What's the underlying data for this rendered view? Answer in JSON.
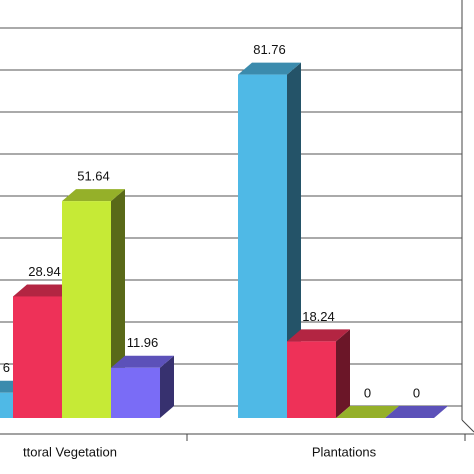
{
  "chart_data": {
    "type": "bar3d",
    "categories": [
      "ttoral Vegetation",
      "Plantations"
    ],
    "series": [
      {
        "color": "#4fb9e6",
        "values": [
          6,
          81.76
        ]
      },
      {
        "color": "#ee3158",
        "values": [
          28.94,
          18.24
        ]
      },
      {
        "color": "#c6ea36",
        "values": [
          51.64,
          0
        ]
      },
      {
        "color": "#7a6cf6",
        "values": [
          11.96,
          0
        ]
      }
    ],
    "ylim": [
      0,
      100
    ],
    "yticks": [
      0,
      10,
      20,
      30,
      40,
      50,
      60,
      70,
      80,
      90,
      100
    ],
    "grid": true
  }
}
